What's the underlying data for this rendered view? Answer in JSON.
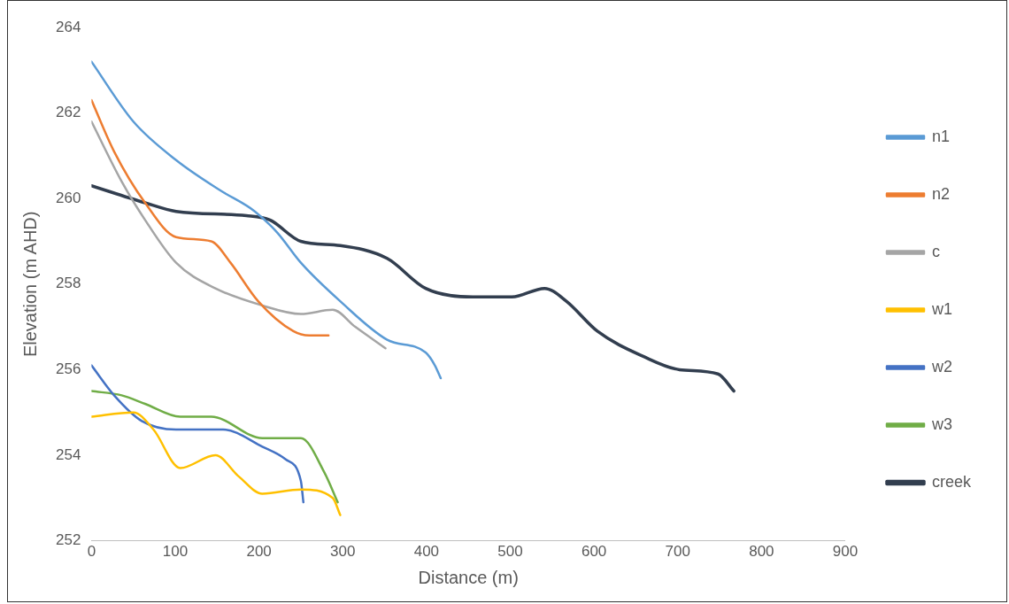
{
  "chart_data": {
    "type": "line",
    "xlabel": "Distance (m)",
    "ylabel": "Elevation (m AHD)",
    "xlim": [
      0,
      900
    ],
    "xticks": [
      0,
      100,
      200,
      300,
      400,
      500,
      600,
      700,
      800,
      900
    ],
    "ylim": [
      252,
      264
    ],
    "yticks": [
      252,
      254,
      256,
      258,
      260,
      262,
      264
    ],
    "grid": false,
    "legend": "right",
    "marker": "none",
    "line_style": "solid",
    "series": [
      {
        "name": "n1",
        "color": "#5b9bd5",
        "x": [
          0,
          50,
          101,
          153,
          195,
          222,
          250,
          297,
          353,
          399,
          410,
          417
        ],
        "values": [
          263.2,
          261.8,
          260.9,
          260.2,
          259.7,
          259.2,
          258.5,
          257.6,
          256.7,
          256.4,
          256.1,
          255.8
        ]
      },
      {
        "name": "n2",
        "color": "#ed7d31",
        "x": [
          0,
          27,
          64,
          101,
          143,
          166,
          199,
          241,
          260,
          283
        ],
        "values": [
          262.3,
          261.1,
          259.9,
          259.1,
          259.0,
          258.5,
          257.6,
          256.9,
          256.8,
          256.8
        ]
      },
      {
        "name": "c",
        "color": "#a5a5a5",
        "x": [
          0,
          36,
          64,
          101,
          148,
          204,
          250,
          288,
          315,
          351
        ],
        "values": [
          261.8,
          260.4,
          259.5,
          258.5,
          257.9,
          257.5,
          257.3,
          257.4,
          257.0,
          256.5
        ]
      },
      {
        "name": "w1",
        "color": "#ffc000",
        "x": [
          0,
          50,
          74,
          106,
          148,
          176,
          204,
          250,
          288,
          297
        ],
        "values": [
          254.9,
          255.0,
          254.6,
          253.7,
          254.0,
          253.5,
          253.1,
          253.2,
          253.0,
          252.6
        ]
      },
      {
        "name": "w2",
        "color": "#4472c4",
        "x": [
          0,
          27,
          60,
          101,
          157,
          204,
          232,
          250,
          253
        ],
        "values": [
          256.1,
          255.4,
          254.8,
          254.6,
          254.6,
          254.2,
          253.9,
          253.4,
          252.9
        ]
      },
      {
        "name": "w3",
        "color": "#70ad47",
        "x": [
          0,
          36,
          64,
          106,
          143,
          204,
          250,
          278,
          294
        ],
        "values": [
          255.5,
          255.4,
          255.2,
          254.9,
          254.9,
          254.4,
          254.4,
          253.6,
          252.9
        ]
      },
      {
        "name": "creek",
        "color": "#323e4f",
        "x": [
          0,
          64,
          101,
          185,
          213,
          250,
          297,
          353,
          399,
          455,
          502,
          541,
          567,
          604,
          660,
          702,
          748,
          767
        ],
        "values": [
          260.3,
          259.9,
          259.7,
          259.6,
          259.5,
          259.0,
          258.9,
          258.6,
          257.9,
          257.7,
          257.7,
          257.9,
          257.6,
          256.9,
          256.3,
          256.0,
          255.9,
          255.5
        ]
      }
    ]
  }
}
